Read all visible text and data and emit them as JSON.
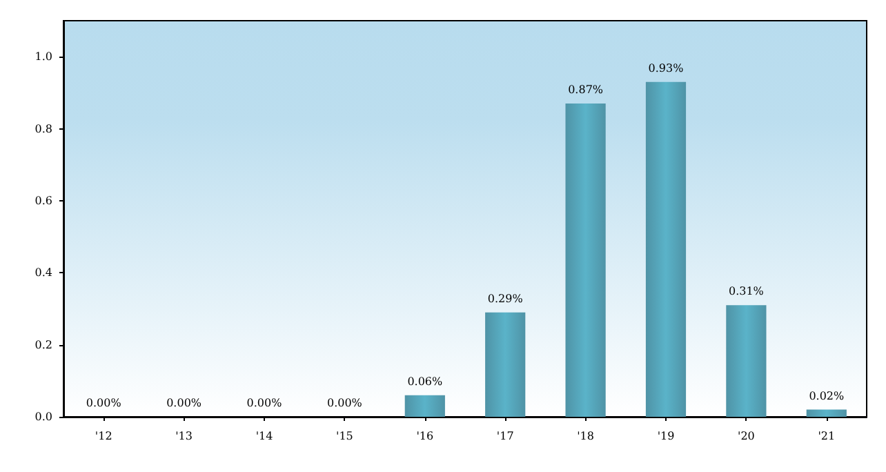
{
  "chart_data": {
    "type": "bar",
    "categories": [
      "'12",
      "'13",
      "'14",
      "'15",
      "'16",
      "'17",
      "'18",
      "'19",
      "'20",
      "'21"
    ],
    "values": [
      0,
      0,
      0,
      0,
      0.06,
      0.29,
      0.87,
      0.93,
      0.31,
      0.02
    ],
    "value_labels": [
      "0.00%",
      "0.00%",
      "0.00%",
      "0.00%",
      "0.06%",
      "0.29%",
      "0.87%",
      "0.93%",
      "0.31%",
      "0.02%"
    ],
    "color": "#5ab3c9",
    "ylim": [
      0,
      1.1
    ],
    "yticks": [
      {
        "value": 0,
        "label": "0.0"
      },
      {
        "value": 0.2,
        "label": "0.2"
      },
      {
        "value": 0.4,
        "label": "0.4"
      },
      {
        "value": 0.6,
        "label": "0.6"
      },
      {
        "value": 0.8,
        "label": "0.8"
      },
      {
        "value": 1,
        "label": "1.0"
      }
    ],
    "grid": false
  }
}
